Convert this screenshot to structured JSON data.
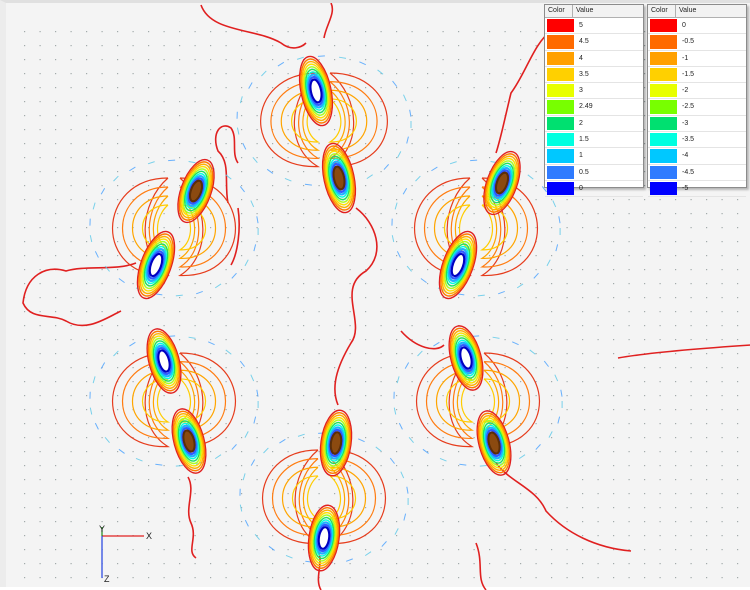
{
  "legend_positive": {
    "color_header": "Color",
    "value_header": "Value",
    "rows": [
      {
        "color": "#ff0000",
        "value": "5"
      },
      {
        "color": "#ff6a00",
        "value": "4.5"
      },
      {
        "color": "#ffa000",
        "value": "4"
      },
      {
        "color": "#ffd000",
        "value": "3.5"
      },
      {
        "color": "#e8ff00",
        "value": "3"
      },
      {
        "color": "#78ff00",
        "value": "2.49"
      },
      {
        "color": "#00e070",
        "value": "2"
      },
      {
        "color": "#00ffe0",
        "value": "1.5"
      },
      {
        "color": "#00c8ff",
        "value": "1"
      },
      {
        "color": "#2f7bff",
        "value": "0.5"
      },
      {
        "color": "#0000ff",
        "value": "0"
      }
    ]
  },
  "legend_negative": {
    "color_header": "Color",
    "value_header": "Value",
    "rows": [
      {
        "color": "#ff0000",
        "value": "0"
      },
      {
        "color": "#ff6a00",
        "value": "-0.5"
      },
      {
        "color": "#ffa000",
        "value": "-1"
      },
      {
        "color": "#ffd000",
        "value": "-1.5"
      },
      {
        "color": "#e8ff00",
        "value": "-2"
      },
      {
        "color": "#78ff00",
        "value": "-2.5"
      },
      {
        "color": "#00e070",
        "value": "-3"
      },
      {
        "color": "#00ffe0",
        "value": "-3.5"
      },
      {
        "color": "#00c8ff",
        "value": "-4"
      },
      {
        "color": "#2f7bff",
        "value": "-4.5"
      },
      {
        "color": "#0000ff",
        "value": "-5"
      }
    ]
  },
  "axes": {
    "x_label": "X",
    "y_label": "Y",
    "z_label": "Z"
  },
  "colors": {
    "background": "#f4f4f4",
    "outer_contour": "#e02020",
    "core_fill": "#8b4a10",
    "dot": "#7f8a8a",
    "arrow": "#4aa8e6"
  }
}
